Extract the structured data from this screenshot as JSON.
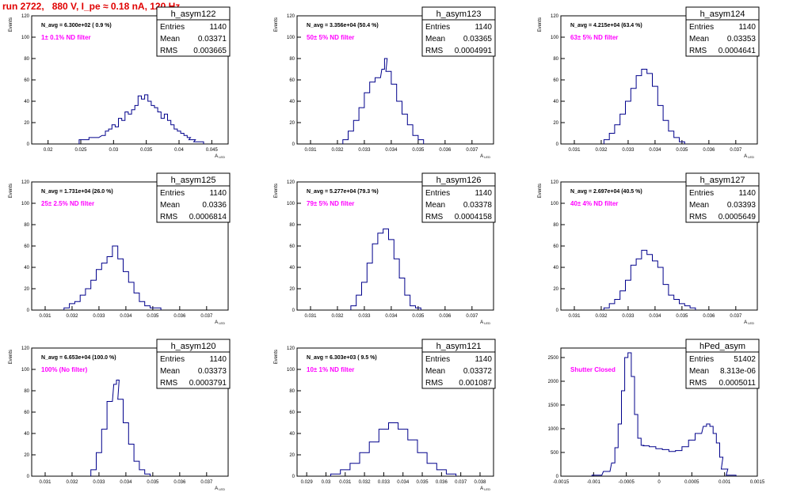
{
  "title": "run 2722,   880 V, I_pe ≈ 0.18 nA, 120 Hz",
  "colors": {
    "hist": "#00008b",
    "filter_label": "#ff00ff",
    "title": "#e00000"
  },
  "chart_data": [
    {
      "type": "histogram",
      "name": "h_asym122",
      "entries": "1140",
      "mean": "0.03371",
      "rms": "0.003665",
      "n_avg": "N_avg = 6.300e+02 ( 0.9 %)",
      "filter": "1± 0.1% ND filter",
      "ylabel": "Events",
      "xlabel": "A_LED",
      "ylim": [
        0,
        120
      ],
      "xlim": [
        0.0175,
        0.0475
      ],
      "xticks": [
        "0.02",
        "0.025",
        "0.03",
        "0.035",
        "0.04",
        "0.045"
      ],
      "xtick_vals": [
        0.02,
        0.025,
        0.03,
        0.035,
        0.04,
        0.045
      ],
      "yticks": [
        "0",
        "20",
        "40",
        "60",
        "80",
        "100",
        "120"
      ],
      "x": [
        0.0255,
        0.027,
        0.0285,
        0.029,
        0.0295,
        0.03,
        0.0305,
        0.031,
        0.0315,
        0.032,
        0.0325,
        0.033,
        0.0335,
        0.034,
        0.0345,
        0.035,
        0.0355,
        0.036,
        0.0365,
        0.037,
        0.0375,
        0.038,
        0.0385,
        0.039,
        0.0395,
        0.04,
        0.0405,
        0.041,
        0.0415,
        0.042,
        0.043
      ],
      "y": [
        4,
        6,
        8,
        12,
        14,
        18,
        16,
        24,
        22,
        30,
        28,
        32,
        36,
        45,
        42,
        46,
        40,
        36,
        34,
        30,
        24,
        28,
        22,
        18,
        14,
        12,
        10,
        8,
        6,
        4,
        2
      ]
    },
    {
      "type": "histogram",
      "name": "h_asym123",
      "entries": "1140",
      "mean": "0.03365",
      "rms": "0.0004991",
      "n_avg": "N_avg = 3.356e+04 (50.4 %)",
      "filter": "50± 5% ND filter",
      "ylabel": "Events",
      "xlabel": "A_LED",
      "ylim": [
        0,
        120
      ],
      "xlim": [
        0.0305,
        0.0378
      ],
      "xticks": [
        "0.031",
        "0.032",
        "0.033",
        "0.034",
        "0.035",
        "0.036",
        "0.037"
      ],
      "xtick_vals": [
        0.031,
        0.032,
        0.033,
        0.034,
        0.035,
        0.036,
        0.037
      ],
      "yticks": [
        "0",
        "20",
        "40",
        "60",
        "80",
        "100",
        "120"
      ],
      "x": [
        0.0323,
        0.0325,
        0.0327,
        0.0329,
        0.0331,
        0.0333,
        0.0335,
        0.0337,
        0.0338,
        0.0339,
        0.0341,
        0.0343,
        0.0345,
        0.0347,
        0.0349,
        0.0351
      ],
      "y": [
        4,
        12,
        22,
        34,
        48,
        58,
        62,
        70,
        80,
        68,
        56,
        40,
        28,
        18,
        8,
        4
      ]
    },
    {
      "type": "histogram",
      "name": "h_asym124",
      "entries": "1140",
      "mean": "0.03353",
      "rms": "0.0004641",
      "n_avg": "N_avg = 4.215e+04 (63.4 %)",
      "filter": "63± 5% ND filter",
      "ylabel": "Events",
      "xlabel": "A_LED",
      "ylim": [
        0,
        120
      ],
      "xlim": [
        0.0305,
        0.0378
      ],
      "xticks": [
        "0.031",
        "0.032",
        "0.033",
        "0.034",
        "0.035",
        "0.036",
        "0.037"
      ],
      "xtick_vals": [
        0.031,
        0.032,
        0.033,
        0.034,
        0.035,
        0.036,
        0.037
      ],
      "yticks": [
        "0",
        "20",
        "40",
        "60",
        "80",
        "100",
        "120"
      ],
      "x": [
        0.0322,
        0.0324,
        0.0326,
        0.0328,
        0.033,
        0.0332,
        0.0334,
        0.0336,
        0.0338,
        0.034,
        0.0342,
        0.0344,
        0.0346,
        0.0348,
        0.035
      ],
      "y": [
        4,
        10,
        18,
        28,
        40,
        52,
        64,
        70,
        66,
        54,
        36,
        22,
        12,
        6,
        2
      ]
    },
    {
      "type": "histogram",
      "name": "h_asym125",
      "entries": "1140",
      "mean": "0.0336",
      "rms": "0.0006814",
      "n_avg": "N_avg = 1.731e+04 (26.0 %)",
      "filter": "25± 2.5% ND filter",
      "ylabel": "Events",
      "xlabel": "A_LED",
      "ylim": [
        0,
        120
      ],
      "xlim": [
        0.0305,
        0.0378
      ],
      "xticks": [
        "0.031",
        "0.032",
        "0.033",
        "0.034",
        "0.035",
        "0.036",
        "0.037"
      ],
      "xtick_vals": [
        0.031,
        0.032,
        0.033,
        0.034,
        0.035,
        0.036,
        0.037
      ],
      "yticks": [
        "0",
        "20",
        "40",
        "60",
        "80",
        "100",
        "120"
      ],
      "x": [
        0.0318,
        0.032,
        0.0322,
        0.0324,
        0.0326,
        0.0328,
        0.033,
        0.0332,
        0.0334,
        0.0336,
        0.0338,
        0.034,
        0.0342,
        0.0344,
        0.0346,
        0.0348,
        0.035,
        0.0352
      ],
      "y": [
        2,
        6,
        8,
        14,
        20,
        28,
        38,
        44,
        50,
        60,
        48,
        36,
        26,
        16,
        8,
        4,
        2,
        2
      ]
    },
    {
      "type": "histogram",
      "name": "h_asym126",
      "entries": "1140",
      "mean": "0.03378",
      "rms": "0.0004158",
      "n_avg": "N_avg = 5.277e+04 (79.3 %)",
      "filter": "79± 5% ND filter",
      "ylabel": "Events",
      "xlabel": "A_LED",
      "ylim": [
        0,
        120
      ],
      "xlim": [
        0.0305,
        0.0378
      ],
      "xticks": [
        "0.031",
        "0.032",
        "0.033",
        "0.034",
        "0.035",
        "0.036",
        "0.037"
      ],
      "xtick_vals": [
        0.031,
        0.032,
        0.033,
        0.034,
        0.035,
        0.036,
        0.037
      ],
      "yticks": [
        "0",
        "20",
        "40",
        "60",
        "80",
        "100",
        "120"
      ],
      "x": [
        0.0326,
        0.0328,
        0.033,
        0.0332,
        0.0334,
        0.0336,
        0.0338,
        0.034,
        0.0342,
        0.0344,
        0.0346,
        0.0348,
        0.035
      ],
      "y": [
        4,
        14,
        26,
        44,
        62,
        72,
        76,
        66,
        48,
        30,
        14,
        4,
        2
      ]
    },
    {
      "type": "histogram",
      "name": "h_asym127",
      "entries": "1140",
      "mean": "0.03393",
      "rms": "0.0005649",
      "n_avg": "N_avg = 2.697e+04 (40.5 %)",
      "filter": "40± 4% ND filter",
      "ylabel": "Events",
      "xlabel": "A_LED",
      "ylim": [
        0,
        120
      ],
      "xlim": [
        0.0305,
        0.0378
      ],
      "xticks": [
        "0.031",
        "0.032",
        "0.033",
        "0.034",
        "0.035",
        "0.036",
        "0.037"
      ],
      "xtick_vals": [
        0.031,
        0.032,
        0.033,
        0.034,
        0.035,
        0.036,
        0.037
      ],
      "yticks": [
        "0",
        "20",
        "40",
        "60",
        "80",
        "100",
        "120"
      ],
      "x": [
        0.0322,
        0.0324,
        0.0326,
        0.0328,
        0.033,
        0.0332,
        0.0334,
        0.0336,
        0.0338,
        0.034,
        0.0342,
        0.0344,
        0.0346,
        0.0348,
        0.035,
        0.0352,
        0.0354
      ],
      "y": [
        2,
        6,
        10,
        18,
        28,
        42,
        48,
        56,
        52,
        46,
        40,
        24,
        14,
        10,
        6,
        4,
        2
      ]
    },
    {
      "type": "histogram",
      "name": "h_asym120",
      "entries": "1140",
      "mean": "0.03373",
      "rms": "0.0003791",
      "n_avg": "N_avg = 6.653e+04 (100.0 %)",
      "filter": "100% (No filter)",
      "ylabel": "Events",
      "xlabel": "A_LED",
      "ylim": [
        0,
        120
      ],
      "xlim": [
        0.0305,
        0.0378
      ],
      "xticks": [
        "0.031",
        "0.032",
        "0.033",
        "0.034",
        "0.035",
        "0.036",
        "0.037"
      ],
      "xtick_vals": [
        0.031,
        0.032,
        0.033,
        0.034,
        0.035,
        0.036,
        0.037
      ],
      "yticks": [
        "0",
        "20",
        "40",
        "60",
        "80",
        "100",
        "120"
      ],
      "x": [
        0.0328,
        0.033,
        0.0332,
        0.0334,
        0.0336,
        0.0337,
        0.0338,
        0.034,
        0.0342,
        0.0344,
        0.0346,
        0.0348
      ],
      "y": [
        6,
        22,
        44,
        70,
        86,
        90,
        72,
        50,
        30,
        14,
        6,
        2
      ]
    },
    {
      "type": "histogram",
      "name": "h_asym121",
      "entries": "1140",
      "mean": "0.03372",
      "rms": "0.001087",
      "n_avg": "N_avg = 6.303e+03 ( 9.5 %)",
      "filter": "10± 1% ND filter",
      "ylabel": "Events",
      "xlabel": "A_LED",
      "ylim": [
        0,
        120
      ],
      "xlim": [
        0.0285,
        0.0387
      ],
      "xticks": [
        "0.029",
        "0.03",
        "0.031",
        "0.032",
        "0.033",
        "0.034",
        "0.035",
        "0.036",
        "0.037",
        "0.038"
      ],
      "xtick_vals": [
        0.029,
        0.03,
        0.031,
        0.032,
        0.033,
        0.034,
        0.035,
        0.036,
        0.037,
        0.038
      ],
      "yticks": [
        "0",
        "20",
        "40",
        "60",
        "80",
        "100",
        "120"
      ],
      "x": [
        0.0305,
        0.031,
        0.0315,
        0.032,
        0.0325,
        0.033,
        0.0335,
        0.034,
        0.0345,
        0.035,
        0.0355,
        0.036,
        0.0365
      ],
      "y": [
        2,
        6,
        12,
        22,
        32,
        44,
        50,
        44,
        34,
        22,
        12,
        6,
        2
      ]
    },
    {
      "type": "histogram",
      "name": "hPed_asym",
      "entries": "51402",
      "mean": "8.313e-06",
      "rms": "0.0005011",
      "filter": "Shutter Closed",
      "ylabel": "",
      "xlabel": "",
      "ylim": [
        0,
        2700
      ],
      "xlim": [
        -0.0015,
        0.0015
      ],
      "xticks": [
        "-0.0015",
        "-0.001",
        "-0.0005",
        "0",
        "0.0005",
        "0.001",
        "0.0015"
      ],
      "xtick_vals": [
        -0.0015,
        -0.001,
        -0.0005,
        0,
        0.0005,
        0.001,
        0.0015
      ],
      "yticks": [
        "0",
        "500",
        "1000",
        "1500",
        "2000",
        "2500"
      ],
      "ytick_vals": [
        0,
        500,
        1000,
        1500,
        2000,
        2500
      ],
      "x": [
        -0.00095,
        -0.0008,
        -0.0007,
        -0.00065,
        -0.0006,
        -0.00055,
        -0.0005,
        -0.00045,
        -0.0004,
        -0.00035,
        -0.0003,
        -0.00025,
        -0.0002,
        -0.0001,
        0,
        0.0001,
        0.0002,
        0.0003,
        0.0004,
        0.0005,
        0.0006,
        0.0007,
        0.00075,
        0.0008,
        0.00085,
        0.0009,
        0.00095,
        0.001,
        0.0011
      ],
      "y": [
        20,
        100,
        280,
        600,
        1100,
        1800,
        2500,
        2600,
        2100,
        1300,
        800,
        650,
        640,
        620,
        580,
        560,
        520,
        540,
        620,
        760,
        900,
        1050,
        1100,
        1050,
        900,
        700,
        400,
        150,
        20
      ]
    }
  ]
}
